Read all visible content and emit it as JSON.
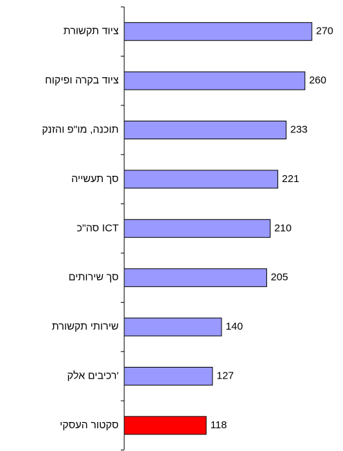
{
  "chart_data": {
    "type": "bar",
    "orientation": "horizontal",
    "categories": [
      "ציוד תקשורת",
      "ציוד בקרה ופיקוח",
      "תוכנה, מו\"פ והזנק",
      "סך תעשייה",
      "סה\"כ ICT",
      "סך שירותים",
      "שירותי תקשורת",
      "רכיבים אלק'",
      "סקטור העסקי"
    ],
    "values": [
      270,
      260,
      233,
      221,
      210,
      205,
      140,
      127,
      118
    ],
    "colors": [
      "#9999ff",
      "#9999ff",
      "#9999ff",
      "#9999ff",
      "#9999ff",
      "#9999ff",
      "#9999ff",
      "#9999ff",
      "#ff0000"
    ]
  }
}
